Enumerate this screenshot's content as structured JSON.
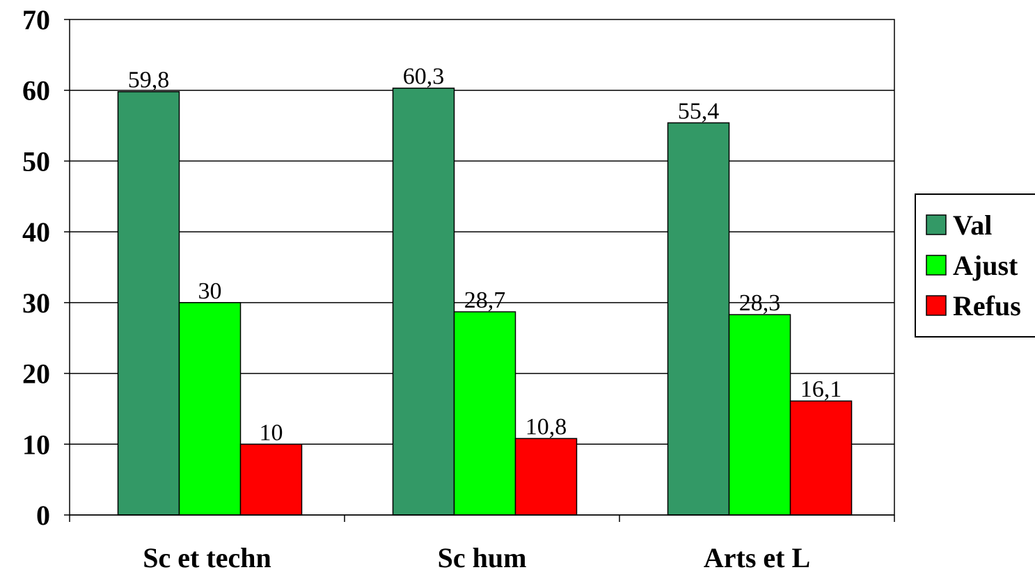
{
  "chart_data": {
    "type": "bar",
    "categories": [
      "Sc et techn",
      "Sc hum",
      "Arts et L"
    ],
    "series": [
      {
        "name": "Val",
        "color": "#339966",
        "values": [
          59.8,
          60.3,
          55.4
        ],
        "labels": [
          "59,8",
          "60,3",
          "55,4"
        ]
      },
      {
        "name": "Ajust",
        "color": "#00FF00",
        "values": [
          30,
          28.7,
          28.3
        ],
        "labels": [
          "30",
          "28,7",
          "28,3"
        ]
      },
      {
        "name": "Refus",
        "color": "#FF0000",
        "values": [
          10,
          10.8,
          16.1
        ],
        "labels": [
          "10",
          "10,8",
          "16,1"
        ]
      }
    ],
    "yticks": [
      "0",
      "10",
      "20",
      "30",
      "40",
      "50",
      "60",
      "70"
    ],
    "ylim": [
      0,
      70
    ],
    "grid": true,
    "legend_position": "right"
  }
}
